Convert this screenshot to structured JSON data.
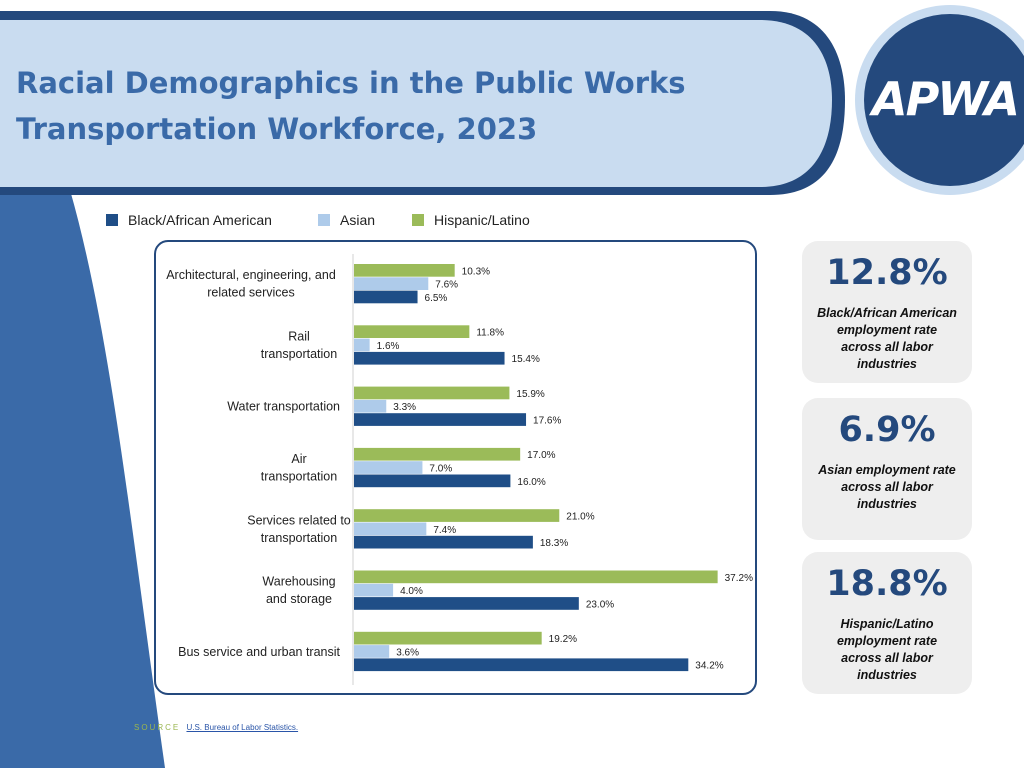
{
  "header": {
    "title_line1": "Racial Demographics in the Public Works",
    "title_line2": "Transportation Workforce, 2023",
    "logo_text": "APWA"
  },
  "colors": {
    "black_african_american": "#1f4e87",
    "asian": "#aecbea",
    "hispanic_latino": "#9bbb59",
    "header_band": "#c9dcf0",
    "dark_blue": "#24497d",
    "title": "#3a6aa8"
  },
  "legend": [
    {
      "label": "Black/African American",
      "color": "#1f4e87"
    },
    {
      "label": "Asian",
      "color": "#aecbea"
    },
    {
      "label": "Hispanic/Latino",
      "color": "#9bbb59"
    }
  ],
  "chart_data": {
    "type": "bar",
    "orientation": "horizontal",
    "categories": [
      [
        "Architectural, engineering, and",
        "related services"
      ],
      [
        "Rail",
        "transportation"
      ],
      [
        "Water transportation"
      ],
      [
        "Air",
        "transportation"
      ],
      [
        "Services related to",
        "transportation"
      ],
      [
        "Warehousing",
        "and storage"
      ],
      [
        "Bus service and urban transit"
      ]
    ],
    "series": [
      {
        "name": "Hispanic/Latino",
        "color": "#9bbb59",
        "values": [
          10.3,
          11.8,
          15.9,
          17.0,
          21.0,
          37.2,
          19.2
        ],
        "labels": [
          "10.3%",
          "11.8%",
          "15.9%",
          "17.0%",
          "21.0%",
          "37.2%",
          "19.2%"
        ]
      },
      {
        "name": "Asian",
        "color": "#aecbea",
        "values": [
          7.6,
          1.6,
          3.3,
          7.0,
          7.4,
          4.0,
          3.6
        ],
        "labels": [
          "7.6%",
          "1.6%",
          "3.3%",
          "7.0%",
          "7.4%",
          "4.0%",
          "3.6%"
        ]
      },
      {
        "name": "Black/African American",
        "color": "#1f4e87",
        "values": [
          6.5,
          15.4,
          17.6,
          16.0,
          18.3,
          23.0,
          34.2
        ],
        "labels": [
          "6.5%",
          "15.4%",
          "17.6%",
          "16.0%",
          "18.3%",
          "23.0%",
          "34.2%"
        ]
      }
    ],
    "xlim": [
      0,
      40
    ],
    "grid": false,
    "legend_position": "top"
  },
  "stats": [
    {
      "value": "12.8%",
      "desc": "Black/African American employment rate across all labor industries"
    },
    {
      "value": "6.9%",
      "desc": "Asian employment rate across all labor industries"
    },
    {
      "value": "18.8%",
      "desc": "Hispanic/Latino employment rate across all labor industries"
    }
  ],
  "source": {
    "label": "SOURCE",
    "link_text": "U.S. Bureau of Labor Statistics."
  }
}
